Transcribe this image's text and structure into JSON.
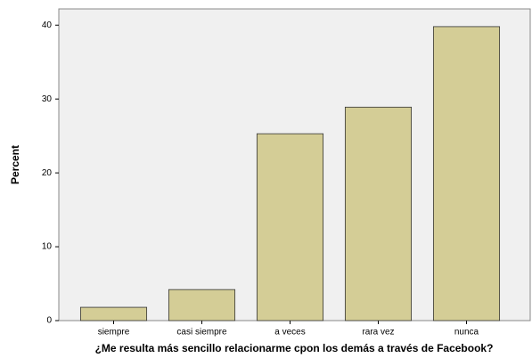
{
  "chart_data": {
    "type": "bar",
    "x_label": "¿Me resulta más sencillo relacionarme cpon los demás a través de Facebook?",
    "y_label": "Percent",
    "categories": [
      "siempre",
      "casi siempre",
      "a veces",
      "rara vez",
      "nunca"
    ],
    "values": [
      1.8,
      4.2,
      25.3,
      28.9,
      39.8
    ],
    "color": "#d4cd96",
    "ylim": [
      0,
      42.2
    ],
    "yticks": [
      0,
      10,
      20,
      30,
      40
    ],
    "grid": false
  }
}
